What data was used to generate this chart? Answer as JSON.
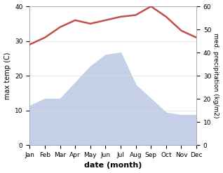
{
  "months": [
    "Jan",
    "Feb",
    "Mar",
    "Apr",
    "May",
    "Jun",
    "Jul",
    "Aug",
    "Sep",
    "Oct",
    "Nov",
    "Dec"
  ],
  "temperature": [
    29,
    31,
    34,
    36,
    35,
    36,
    37,
    37.5,
    40,
    37,
    33,
    31
  ],
  "precipitation": [
    17,
    20,
    20,
    27,
    34,
    39,
    40,
    26,
    20,
    14,
    13,
    13
  ],
  "temp_color": "#c0504d",
  "precip_color": "#c5cfe8",
  "ylabel_left": "max temp (C)",
  "ylabel_right": "med. precipitation (kg/m2)",
  "xlabel": "date (month)",
  "ylim_left": [
    0,
    40
  ],
  "ylim_right": [
    0,
    60
  ],
  "yticks_left": [
    0,
    10,
    20,
    30,
    40
  ],
  "yticks_right": [
    0,
    10,
    20,
    30,
    40,
    50,
    60
  ],
  "plot_bg_color": "#ffffff",
  "spine_color": "#aaaaaa",
  "grid_color": "#dddddd"
}
